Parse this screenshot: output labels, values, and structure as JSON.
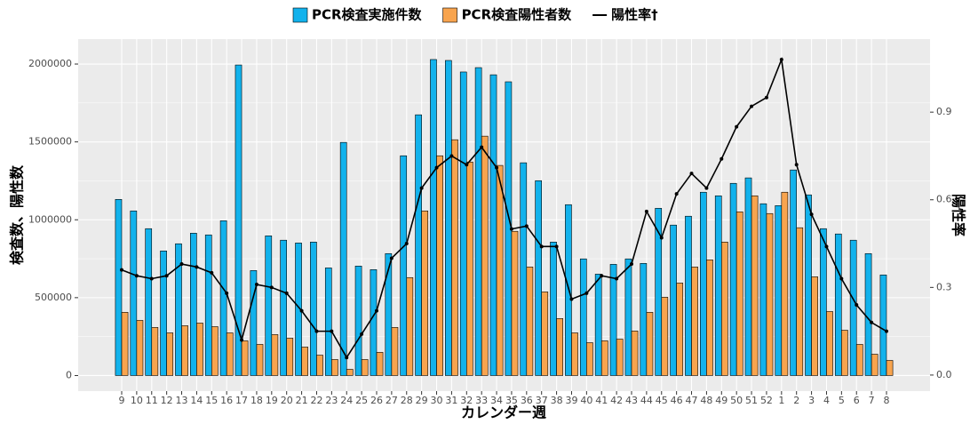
{
  "chart_data": {
    "type": "bar",
    "categories": [
      "9",
      "10",
      "11",
      "12",
      "13",
      "14",
      "15",
      "16",
      "17",
      "18",
      "19",
      "20",
      "21",
      "22",
      "23",
      "24",
      "25",
      "26",
      "27",
      "28",
      "29",
      "30",
      "31",
      "32",
      "33",
      "34",
      "35",
      "36",
      "37",
      "38",
      "39",
      "40",
      "41",
      "42",
      "43",
      "44",
      "45",
      "46",
      "47",
      "48",
      "49",
      "50",
      "51",
      "52",
      "1",
      "2",
      "3",
      "4",
      "5",
      "6",
      "7",
      "8"
    ],
    "series": [
      {
        "name": "PCR検査実施件数",
        "type": "bar",
        "color": "#12b2ec",
        "values": [
          1131000,
          1057000,
          943000,
          800000,
          846000,
          914000,
          903000,
          994000,
          1994000,
          674000,
          897000,
          869000,
          851000,
          857000,
          691000,
          1497000,
          703000,
          680000,
          783000,
          1411000,
          1674000,
          2029000,
          2023000,
          1949000,
          1977000,
          1931000,
          1886000,
          1366000,
          1251000,
          857000,
          1097000,
          749000,
          651000,
          714000,
          749000,
          720000,
          1074000,
          966000,
          1023000,
          1177000,
          1154000,
          1234000,
          1269000,
          1103000,
          1091000,
          1320000,
          1160000,
          943000,
          909000,
          869000,
          783000,
          646000
        ]
      },
      {
        "name": "PCR検査陽性者数",
        "type": "bar",
        "color": "#f8a44e",
        "values": [
          406000,
          354000,
          309000,
          274000,
          320000,
          337000,
          314000,
          274000,
          223000,
          200000,
          263000,
          240000,
          183000,
          131000,
          103000,
          40000,
          103000,
          149000,
          309000,
          629000,
          1057000,
          1411000,
          1514000,
          1371000,
          1537000,
          1349000,
          926000,
          697000,
          537000,
          366000,
          274000,
          211000,
          223000,
          234000,
          286000,
          406000,
          503000,
          594000,
          697000,
          743000,
          857000,
          1051000,
          1154000,
          1040000,
          1177000,
          949000,
          634000,
          411000,
          291000,
          200000,
          137000,
          97000
        ]
      },
      {
        "name": "陽性率†",
        "type": "line",
        "axis": "y2",
        "color": "#000000",
        "values": [
          0.36,
          0.34,
          0.33,
          0.34,
          0.38,
          0.37,
          0.35,
          0.28,
          0.12,
          0.31,
          0.3,
          0.28,
          0.22,
          0.15,
          0.15,
          0.06,
          0.14,
          0.22,
          0.4,
          0.45,
          0.64,
          0.71,
          0.75,
          0.72,
          0.78,
          0.71,
          0.5,
          0.51,
          0.44,
          0.44,
          0.26,
          0.28,
          0.34,
          0.33,
          0.38,
          0.56,
          0.47,
          0.62,
          0.69,
          0.64,
          0.74,
          0.85,
          0.92,
          0.95,
          1.08,
          0.72,
          0.55,
          0.44,
          0.33,
          0.24,
          0.18,
          0.15
        ]
      }
    ],
    "x_label": "カレンダー週",
    "y_label": "検査数、陽性数",
    "y2_label": "陽性率",
    "ylim": [
      -100000,
      2160000
    ],
    "yticks": [
      0,
      500000,
      1000000,
      1500000,
      2000000
    ],
    "y2lim": [
      -0.055,
      1.15
    ],
    "y2ticks": [
      {
        "value": 0,
        "label": "0.0"
      },
      0.3,
      0.6,
      0.9
    ],
    "grid": true,
    "legend": "top"
  }
}
